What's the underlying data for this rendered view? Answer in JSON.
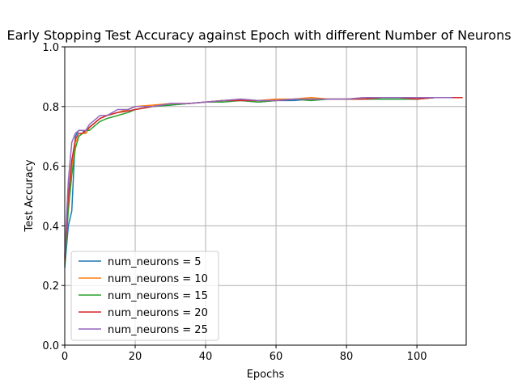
{
  "chart_data": {
    "type": "line",
    "title": "Early Stopping Test Accuracy against Epoch with different Number of Neurons",
    "xlabel": "Epochs",
    "ylabel": "Test Accuracy",
    "xlim": [
      0,
      114
    ],
    "ylim": [
      0.0,
      1.0
    ],
    "xticks": [
      0,
      20,
      40,
      60,
      80,
      100
    ],
    "yticks": [
      0.0,
      0.2,
      0.4,
      0.6,
      0.8,
      1.0
    ],
    "grid": true,
    "legend_position": "lower-left",
    "series": [
      {
        "name": "num_neurons = 5",
        "color": "#1f77b4",
        "x": [
          0,
          1,
          2,
          3,
          4,
          5,
          6,
          7,
          8,
          10,
          12,
          15,
          18,
          20,
          25,
          30,
          35,
          40,
          45,
          50,
          55,
          60,
          65,
          70,
          75,
          80,
          85,
          90,
          95,
          100,
          105,
          110
        ],
        "y": [
          0.26,
          0.4,
          0.45,
          0.7,
          0.72,
          0.72,
          0.71,
          0.73,
          0.74,
          0.76,
          0.77,
          0.78,
          0.79,
          0.8,
          0.8,
          0.805,
          0.81,
          0.815,
          0.82,
          0.82,
          0.815,
          0.82,
          0.82,
          0.825,
          0.825,
          0.825,
          0.825,
          0.825,
          0.825,
          0.825,
          0.83,
          0.83
        ]
      },
      {
        "name": "num_neurons = 10",
        "color": "#ff7f0e",
        "x": [
          0,
          1,
          2,
          3,
          4,
          5,
          6,
          7,
          8,
          10,
          12,
          15,
          18,
          20,
          25,
          30,
          35,
          40,
          45,
          50,
          55,
          60,
          65,
          70,
          75,
          80,
          85,
          90,
          95,
          100,
          105,
          113
        ],
        "y": [
          0.28,
          0.48,
          0.6,
          0.68,
          0.7,
          0.71,
          0.71,
          0.73,
          0.74,
          0.76,
          0.77,
          0.78,
          0.79,
          0.8,
          0.805,
          0.81,
          0.81,
          0.815,
          0.82,
          0.825,
          0.82,
          0.825,
          0.825,
          0.83,
          0.825,
          0.825,
          0.83,
          0.83,
          0.83,
          0.825,
          0.83,
          0.83
        ]
      },
      {
        "name": "num_neurons = 15",
        "color": "#2ca02c",
        "x": [
          0,
          1,
          2,
          3,
          4,
          5,
          6,
          7,
          8,
          10,
          12,
          15,
          18,
          20,
          25,
          30,
          35,
          40,
          45,
          50,
          55,
          60,
          65,
          70,
          75,
          80,
          85,
          90,
          95,
          100,
          105,
          112
        ],
        "y": [
          0.27,
          0.45,
          0.57,
          0.66,
          0.7,
          0.71,
          0.72,
          0.72,
          0.73,
          0.75,
          0.76,
          0.77,
          0.78,
          0.79,
          0.8,
          0.805,
          0.81,
          0.815,
          0.815,
          0.82,
          0.815,
          0.82,
          0.825,
          0.82,
          0.825,
          0.825,
          0.825,
          0.825,
          0.825,
          0.825,
          0.83,
          0.83
        ]
      },
      {
        "name": "num_neurons = 20",
        "color": "#d62728",
        "x": [
          0,
          1,
          2,
          3,
          4,
          5,
          6,
          7,
          8,
          10,
          12,
          15,
          18,
          20,
          25,
          30,
          35,
          40,
          45,
          50,
          55,
          60,
          65,
          70,
          75,
          80,
          85,
          90,
          95,
          100,
          105,
          113
        ],
        "y": [
          0.29,
          0.5,
          0.62,
          0.69,
          0.71,
          0.71,
          0.72,
          0.73,
          0.74,
          0.76,
          0.77,
          0.78,
          0.785,
          0.79,
          0.8,
          0.81,
          0.81,
          0.815,
          0.82,
          0.82,
          0.82,
          0.82,
          0.825,
          0.825,
          0.825,
          0.825,
          0.825,
          0.83,
          0.83,
          0.825,
          0.83,
          0.83
        ]
      },
      {
        "name": "num_neurons = 25",
        "color": "#9467bd",
        "x": [
          0,
          1,
          2,
          3,
          4,
          5,
          6,
          7,
          8,
          10,
          12,
          15,
          18,
          20,
          25,
          30,
          35,
          40,
          45,
          50,
          55,
          60,
          65,
          70,
          75,
          80,
          85,
          90,
          95,
          100,
          105,
          110
        ],
        "y": [
          0.3,
          0.55,
          0.68,
          0.71,
          0.72,
          0.72,
          0.72,
          0.74,
          0.75,
          0.77,
          0.77,
          0.79,
          0.79,
          0.8,
          0.8,
          0.81,
          0.81,
          0.815,
          0.82,
          0.825,
          0.82,
          0.82,
          0.825,
          0.825,
          0.825,
          0.825,
          0.83,
          0.83,
          0.83,
          0.83,
          0.83,
          0.83
        ]
      }
    ]
  }
}
